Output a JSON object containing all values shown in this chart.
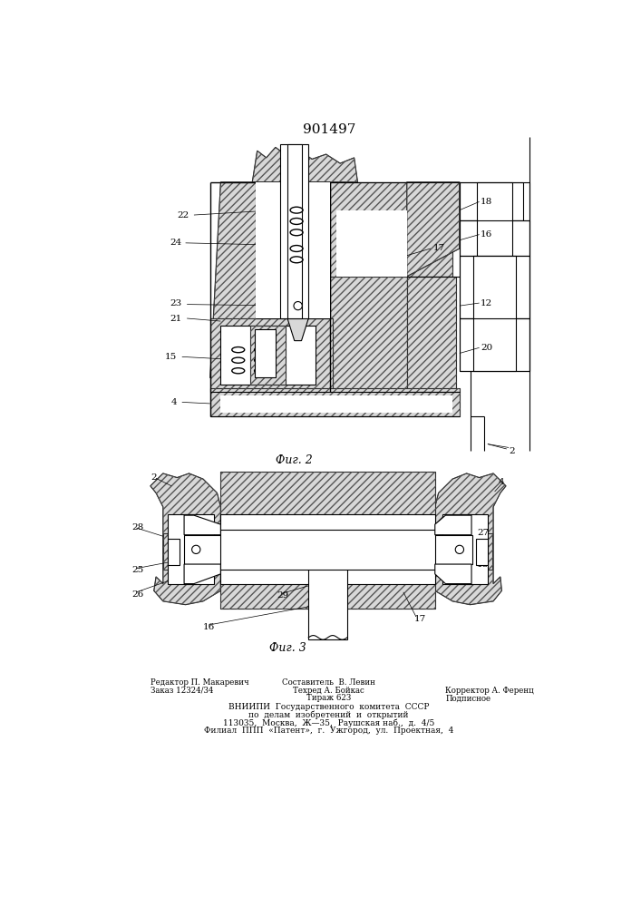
{
  "title": "901497",
  "title_fontsize": 11,
  "fig2_label": "Фиг. 2",
  "fig3_label": "Фиг. 3",
  "bg_color": "#ffffff",
  "hatch_color": "#444444",
  "line_color": "#000000"
}
